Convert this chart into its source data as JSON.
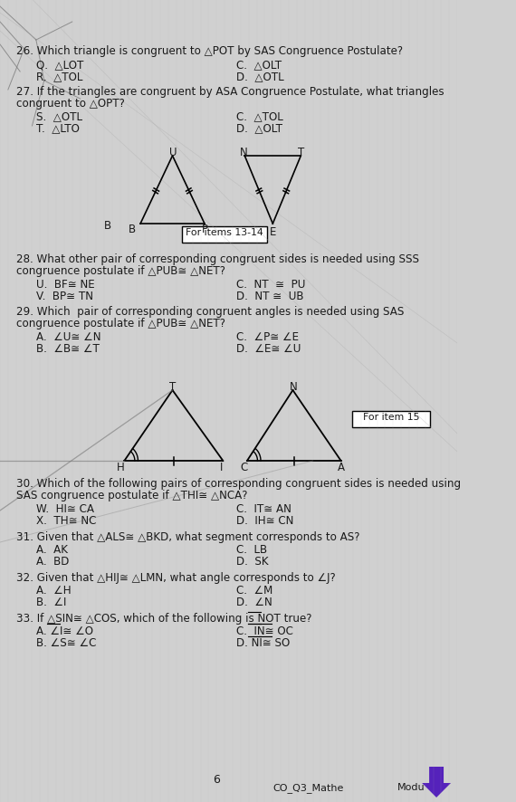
{
  "bg_color": "#d0d0d0",
  "text_color": "#1a1a1a",
  "title_q26": "26. Which triangle is congruent to △POT by SAS Congruence Postulate?",
  "q26_A": "Q.  △LOT",
  "q26_B": "C.  △OLT",
  "q26_C": "R.  △TOL",
  "q26_D": "D.  △OTL",
  "title_q27a": "27. If the triangles are congruent by ASA Congruence Postulate, what triangles",
  "title_q27b": "congruent to △OPT?",
  "q27_A": "S.  △OTL",
  "q27_B": "C.  △TOL",
  "q27_C": "T.  △LTO",
  "q27_D": "D.  △OLT",
  "label_for_items": "For items 13-14",
  "title_q28a": "28. What other pair of corresponding congruent sides is needed using SSS",
  "title_q28b": "congruence postulate if △PUB≅ △NET?",
  "q28_A": "U.  BF≅ NE",
  "q28_B": "C.  NT  ≅  PU",
  "q28_C": "V.  BP≅ TN",
  "q28_D": "D.  NT ≅  UB",
  "title_q29a": "29. Which  pair of corresponding congruent angles is needed using SAS",
  "title_q29b": "congruence postulate if △PUB≅ △NET?",
  "q29_A": "A.  ∠U≅ ∠N",
  "q29_B": "C.  ∠P≅ ∠E",
  "q29_C": "B.  ∠B≅ ∠T",
  "q29_D": "D.  ∠E≅ ∠U",
  "label_for_item15": "For item 15",
  "title_q30a": "30. Which of the following pairs of corresponding congruent sides is needed using",
  "title_q30b": "SAS congruence postulate if △THI≅ △NCA?",
  "q30_A": "W.  HI≅ CA",
  "q30_B": "C.  IT≅ AN",
  "q30_C": "X.  TH≅ NC",
  "q30_D": "D.  IH≅ CN",
  "title_q31": "31. Given that △ALS≅ △BKD, what segment corresponds to AS?",
  "q31_A": "A.  AK",
  "q31_B": "C.  LB",
  "q31_C": "A.  BD",
  "q31_D": "D.  SK",
  "title_q32": "32. Given that △HIJ≅ △LMN, what angle corresponds to ∠J?",
  "q32_A": "A.  ∠H",
  "q32_B": "C.  ∠M",
  "q32_C": "B.  ∠I",
  "q32_D": "D.  ∠N",
  "title_q33": "33. If △SIN≅ △COS, which of the following is NOT true?",
  "q33_A": "A. ∠I≅ ∠O",
  "q33_B": "C.  IN≅ OC",
  "q33_C": "B. ∠S≅ ∠C",
  "q33_D": "D. NI≅ SO",
  "footer_page": "6",
  "footer_left": "CO_Q3_Mathe",
  "footer_right": "Modu"
}
